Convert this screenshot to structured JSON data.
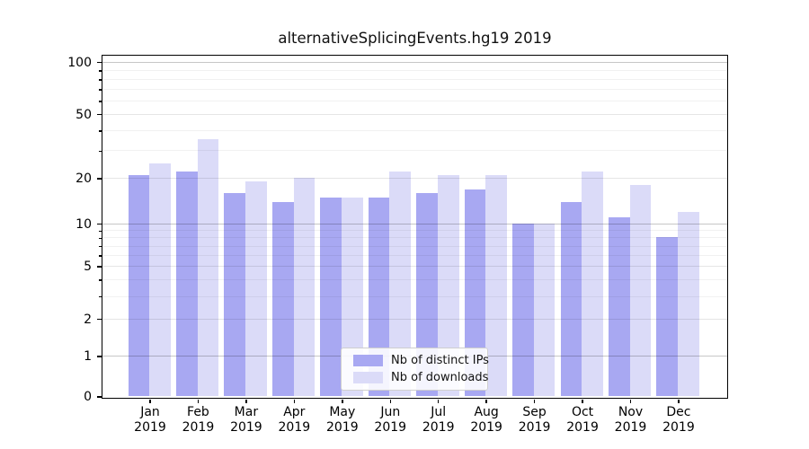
{
  "figure": {
    "title": "alternativeSplicingEvents.hg19 2019",
    "background_color": "#ffffff"
  },
  "chart_data": {
    "type": "bar",
    "title": "alternativeSplicingEvents.hg19 2019",
    "categories": [
      "Jan 2019",
      "Feb 2019",
      "Mar 2019",
      "Apr 2019",
      "May 2019",
      "Jun 2019",
      "Jul 2019",
      "Aug 2019",
      "Sep 2019",
      "Oct 2019",
      "Nov 2019",
      "Dec 2019"
    ],
    "x_tick_month": [
      "Jan",
      "Feb",
      "Mar",
      "Apr",
      "May",
      "Jun",
      "Jul",
      "Aug",
      "Sep",
      "Oct",
      "Nov",
      "Dec"
    ],
    "x_tick_year": "2019",
    "series": [
      {
        "name": "Nb of distinct IPs",
        "color": "#a8a8f2",
        "values": [
          21,
          22,
          16,
          14,
          15,
          15,
          16,
          17,
          10,
          14,
          11,
          8
        ]
      },
      {
        "name": "Nb of downloads",
        "color": "#dbdbf8",
        "values": [
          25,
          35,
          19,
          20,
          15,
          22,
          21,
          21,
          10,
          22,
          18,
          12
        ]
      }
    ],
    "ylabel": "",
    "xlabel": "",
    "y_axis": {
      "scale": "log-like",
      "range": [
        0,
        100
      ],
      "ticks": [
        0,
        1,
        2,
        5,
        10,
        20,
        50,
        100
      ],
      "minor_ticks": [
        3,
        4,
        6,
        7,
        8,
        9,
        30,
        40,
        60,
        70,
        80,
        90
      ]
    },
    "grid": true,
    "legend": {
      "position": "inside-bottom-center",
      "entries": [
        "Nb of distinct IPs",
        "Nb of downloads"
      ]
    }
  }
}
